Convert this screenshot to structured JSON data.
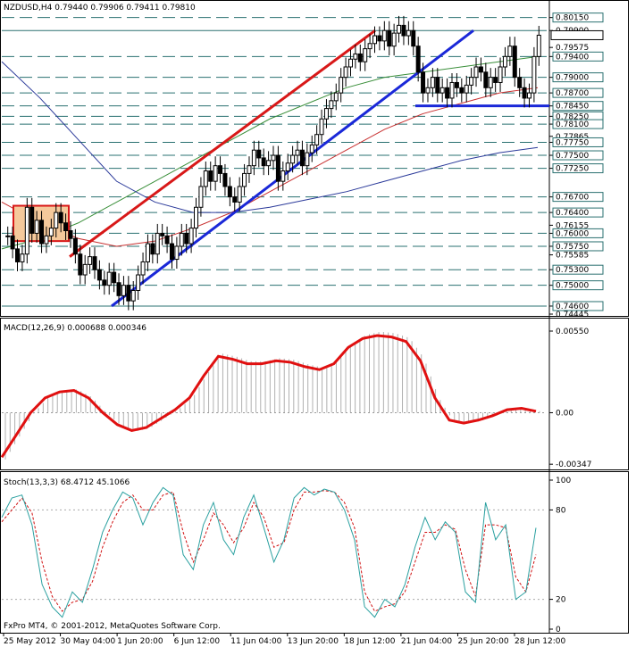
{
  "chart_data": [
    {
      "type": "candlestick",
      "header": "NZDUSD,H4  0.79440 0.79906 0.79411 0.79810",
      "symbol": "NZDUSD",
      "timeframe": "H4",
      "ohlc_readout": {
        "open": 0.7944,
        "high": 0.79906,
        "low": 0.79411,
        "close": 0.7981
      },
      "ylim": [
        0.74445,
        0.8035
      ],
      "ticks": [
        "0.80150",
        "0.79900",
        "0.79575",
        "0.79400",
        "0.79000",
        "0.78700",
        "0.78450",
        "0.78250",
        "0.78100",
        "0.77865",
        "0.77750",
        "0.77500",
        "0.77250",
        "0.76700",
        "0.76400",
        "0.76155",
        "0.76000",
        "0.75750",
        "0.75585",
        "0.75300",
        "0.75000",
        "0.74600",
        "0.74445"
      ],
      "ticks_highlighted": [
        "0.80150",
        "0.79400",
        "0.79000",
        "0.78700",
        "0.78450",
        "0.78250",
        "0.78100",
        "0.77750",
        "0.77500",
        "0.77250",
        "0.76700",
        "0.76400",
        "0.76000",
        "0.75750",
        "0.75300",
        "0.75000",
        "0.74600"
      ],
      "current_price": "0.79810",
      "support_resistance_levels": [
        0.8015,
        0.799,
        0.794,
        0.79,
        0.787,
        0.7845,
        0.7825,
        0.781,
        0.7775,
        0.775,
        0.7725,
        0.767,
        0.764,
        0.76,
        0.7575,
        0.753,
        0.75,
        0.746
      ],
      "close_series": [
        0.7595,
        0.757,
        0.7545,
        0.756,
        0.765,
        0.76,
        0.7625,
        0.758,
        0.7595,
        0.761,
        0.764,
        0.762,
        0.7605,
        0.759,
        0.756,
        0.752,
        0.754,
        0.7555,
        0.753,
        0.751,
        0.75,
        0.7525,
        0.7505,
        0.748,
        0.75,
        0.747,
        0.749,
        0.752,
        0.7545,
        0.758,
        0.756,
        0.76,
        0.7595,
        0.758,
        0.755,
        0.7575,
        0.76,
        0.758,
        0.761,
        0.765,
        0.769,
        0.772,
        0.77,
        0.773,
        0.7715,
        0.769,
        0.767,
        0.766,
        0.769,
        0.7715,
        0.773,
        0.776,
        0.7745,
        0.773,
        0.774,
        0.775,
        0.77,
        0.772,
        0.7735,
        0.775,
        0.776,
        0.773,
        0.7755,
        0.777,
        0.779,
        0.782,
        0.784,
        0.7855,
        0.787,
        0.79,
        0.792,
        0.7935,
        0.7945,
        0.793,
        0.7955,
        0.7965,
        0.798,
        0.797,
        0.799,
        0.796,
        0.7985,
        0.8,
        0.798,
        0.799,
        0.796,
        0.791,
        0.787,
        0.788,
        0.79,
        0.787,
        0.788,
        0.786,
        0.789,
        0.788,
        0.787,
        0.7885,
        0.79,
        0.792,
        0.791,
        0.788,
        0.79,
        0.789,
        0.792,
        0.794,
        0.796,
        0.79,
        0.788,
        0.786,
        0.787,
        0.794,
        0.7981
      ],
      "moving_averages": [
        {
          "color": "#3a8f3a",
          "values": [
            0.757,
            0.759,
            0.762,
            0.766,
            0.77,
            0.774,
            0.778,
            0.782,
            0.785,
            0.788,
            0.79,
            0.791,
            0.792,
            0.793,
            0.794
          ]
        },
        {
          "color": "#c83030",
          "values": [
            0.766,
            0.762,
            0.759,
            0.7575,
            0.7585,
            0.761,
            0.764,
            0.768,
            0.772,
            0.776,
            0.78,
            0.783,
            0.785,
            0.787,
            0.788
          ]
        },
        {
          "color": "#2b3a9a",
          "values": [
            0.793,
            0.786,
            0.778,
            0.77,
            0.766,
            0.764,
            0.764,
            0.765,
            0.7665,
            0.768,
            0.77,
            0.772,
            0.774,
            0.7755,
            0.7765
          ]
        }
      ],
      "trend_channel": {
        "color": "#d81818",
        "from": [
          0.7555
        ],
        "to": [
          0.799
        ]
      },
      "trend_lines": [
        {
          "color": "#1a28d8",
          "from": 0.746,
          "to": 0.799
        },
        {
          "color": "#1a28d8",
          "from": 0.7845,
          "to": 0.7845
        }
      ],
      "rectangle": {
        "top": 0.7653,
        "bottom": 0.7585,
        "fill": "#f5c99b",
        "border": "#d81818"
      }
    },
    {
      "type": "macd",
      "header": "MACD(12,26,9) 0.000688 0.000346",
      "ticks": [
        "0.00550",
        "0.00",
        "-0.00347"
      ],
      "ylim": [
        -0.0037,
        0.0058
      ],
      "signal_color": "#e01010",
      "histogram_color": "#b0b0b0",
      "signal": [
        -0.003,
        -0.0015,
        0.0,
        0.001,
        0.0014,
        0.0015,
        0.001,
        0.0,
        -0.0008,
        -0.0012,
        -0.001,
        -0.0004,
        0.0002,
        0.001,
        0.0025,
        0.0038,
        0.0036,
        0.0033,
        0.0033,
        0.0035,
        0.0034,
        0.0031,
        0.0029,
        0.0033,
        0.0044,
        0.005,
        0.0052,
        0.0051,
        0.0048,
        0.0035,
        0.001,
        -0.0005,
        -0.0007,
        -0.0005,
        -0.0002,
        0.0002,
        0.0003,
        0.0001
      ]
    },
    {
      "type": "stochastic",
      "header": "Stoch(13,3,3) 68.4712 45.1066",
      "ticks": [
        "100",
        "80",
        "20",
        "0"
      ],
      "ylim": [
        0,
        100
      ],
      "main_color": "#2aa0a0",
      "signal_color": "#d01010",
      "main": [
        75,
        88,
        90,
        70,
        30,
        15,
        8,
        25,
        18,
        40,
        65,
        80,
        92,
        88,
        70,
        85,
        95,
        90,
        50,
        40,
        70,
        85,
        60,
        50,
        75,
        90,
        68,
        45,
        60,
        88,
        95,
        90,
        94,
        92,
        80,
        60,
        15,
        8,
        20,
        15,
        30,
        55,
        75,
        60,
        72,
        65,
        25,
        18,
        85,
        60,
        70,
        20,
        25,
        68
      ],
      "signal": [
        72,
        80,
        88,
        78,
        45,
        22,
        12,
        18,
        20,
        32,
        55,
        72,
        85,
        90,
        80,
        80,
        90,
        92,
        65,
        45,
        60,
        78,
        70,
        58,
        68,
        85,
        75,
        55,
        58,
        80,
        92,
        92,
        93,
        92,
        85,
        68,
        25,
        12,
        15,
        17,
        25,
        45,
        65,
        65,
        70,
        67,
        40,
        22,
        70,
        70,
        68,
        35,
        25,
        50
      ]
    }
  ],
  "x_labels": [
    "25 May 2012",
    "30 May 04:00",
    "1 Jun 20:00",
    "6 Jun 12:00",
    "11 Jun 04:00",
    "13 Jun 20:00",
    "18 Jun 12:00",
    "21 Jun 04:00",
    "25 Jun 20:00",
    "28 Jun 12:00"
  ],
  "footer": "FxPro MT4, © 2001-2012, MetaQuotes Software Corp."
}
